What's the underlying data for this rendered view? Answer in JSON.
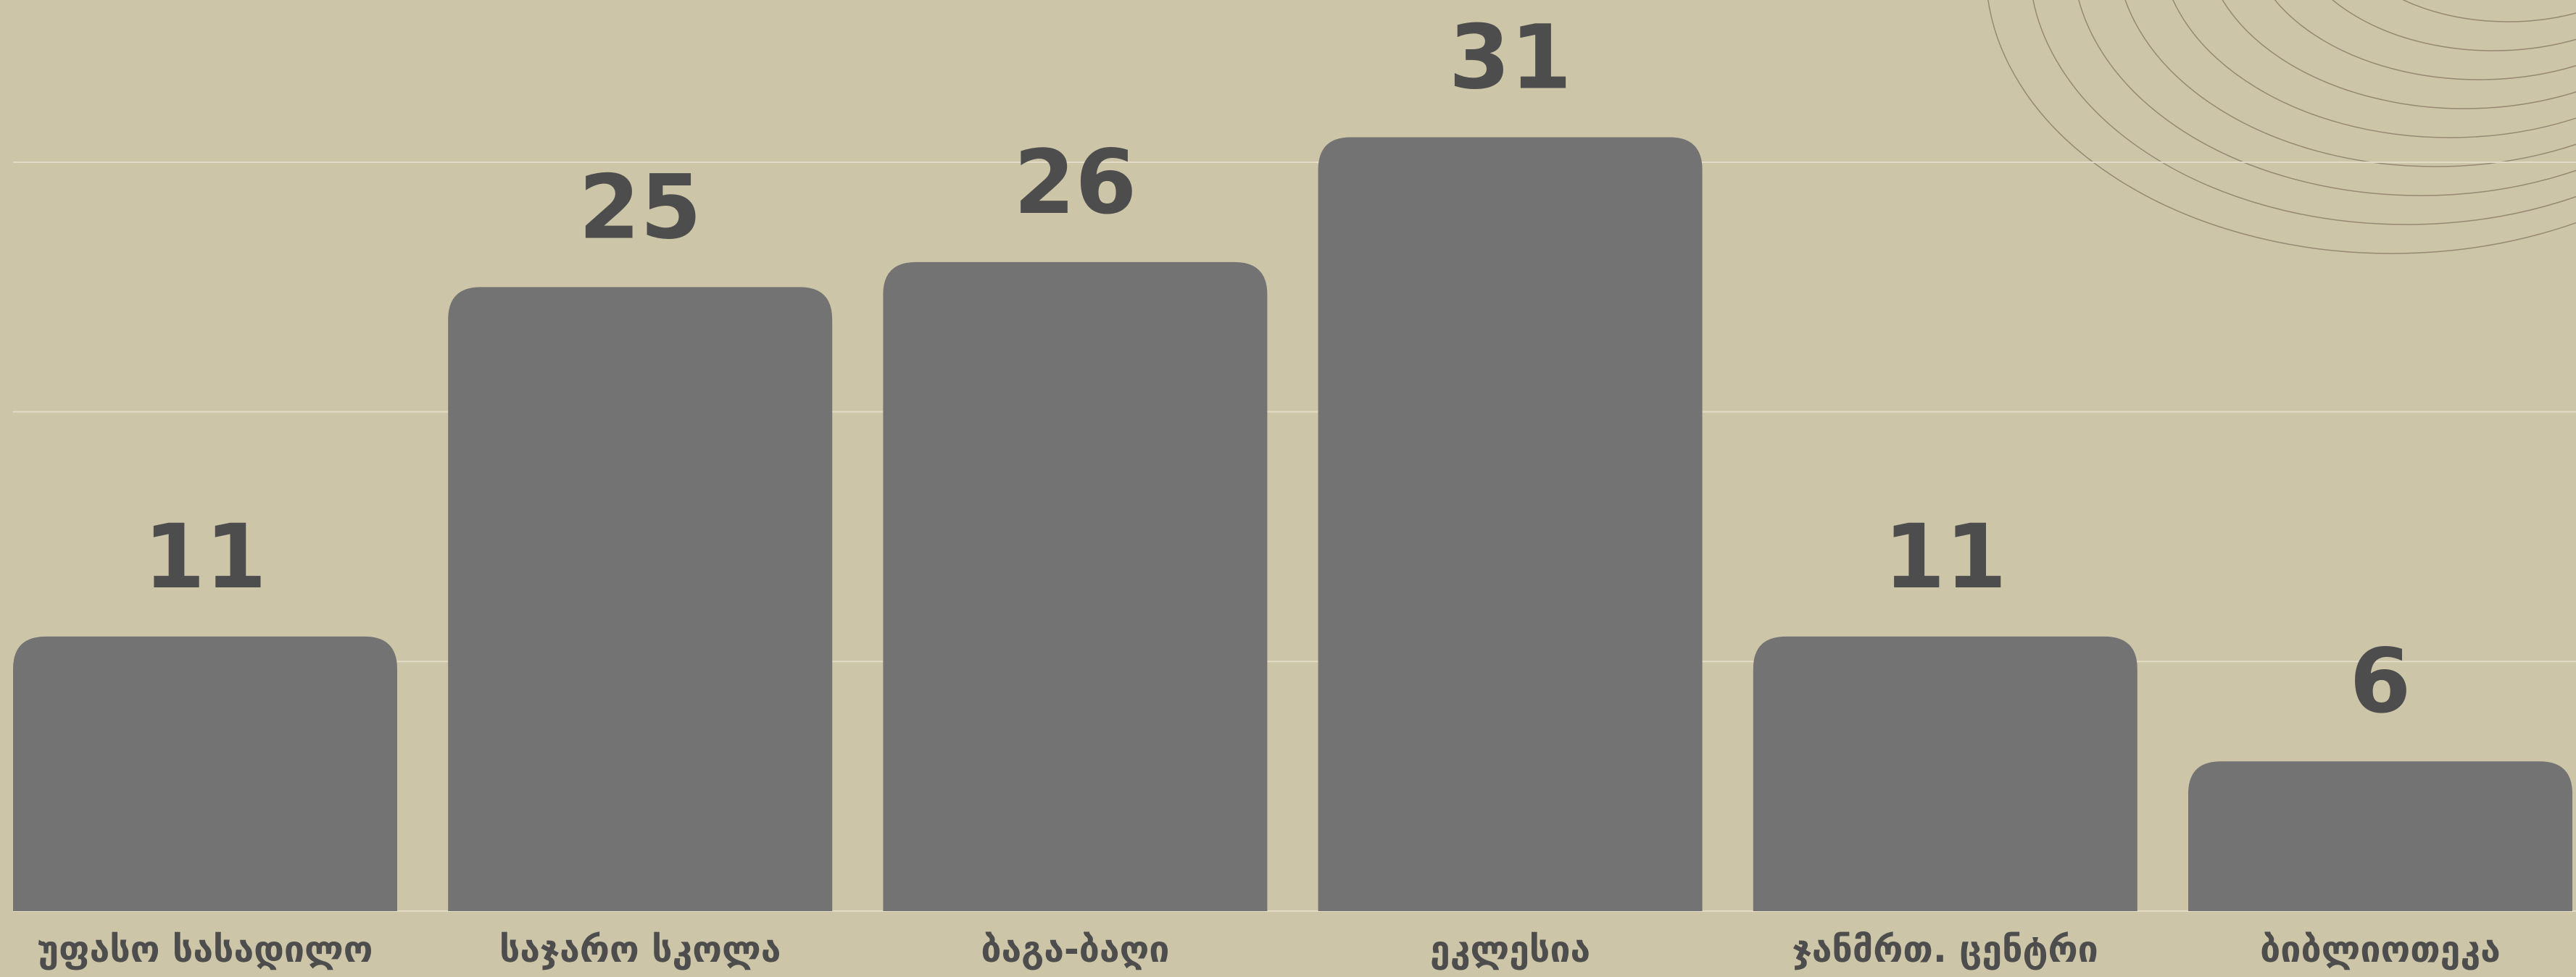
{
  "chart_data": {
    "type": "bar",
    "categories": [
      "უფასო სასადილო",
      "საჯარო სკოლა",
      "ბაგა-ბაღი",
      "ეკლესია",
      "ჯანმრთ. ცენტრი",
      "ბიბლიოთეკა"
    ],
    "values": [
      11,
      25,
      26,
      31,
      11,
      6
    ],
    "color": "#737373",
    "ylim": [
      0,
      36.5
    ],
    "yticks": [
      0,
      10,
      20,
      30
    ],
    "grid": true
  }
}
